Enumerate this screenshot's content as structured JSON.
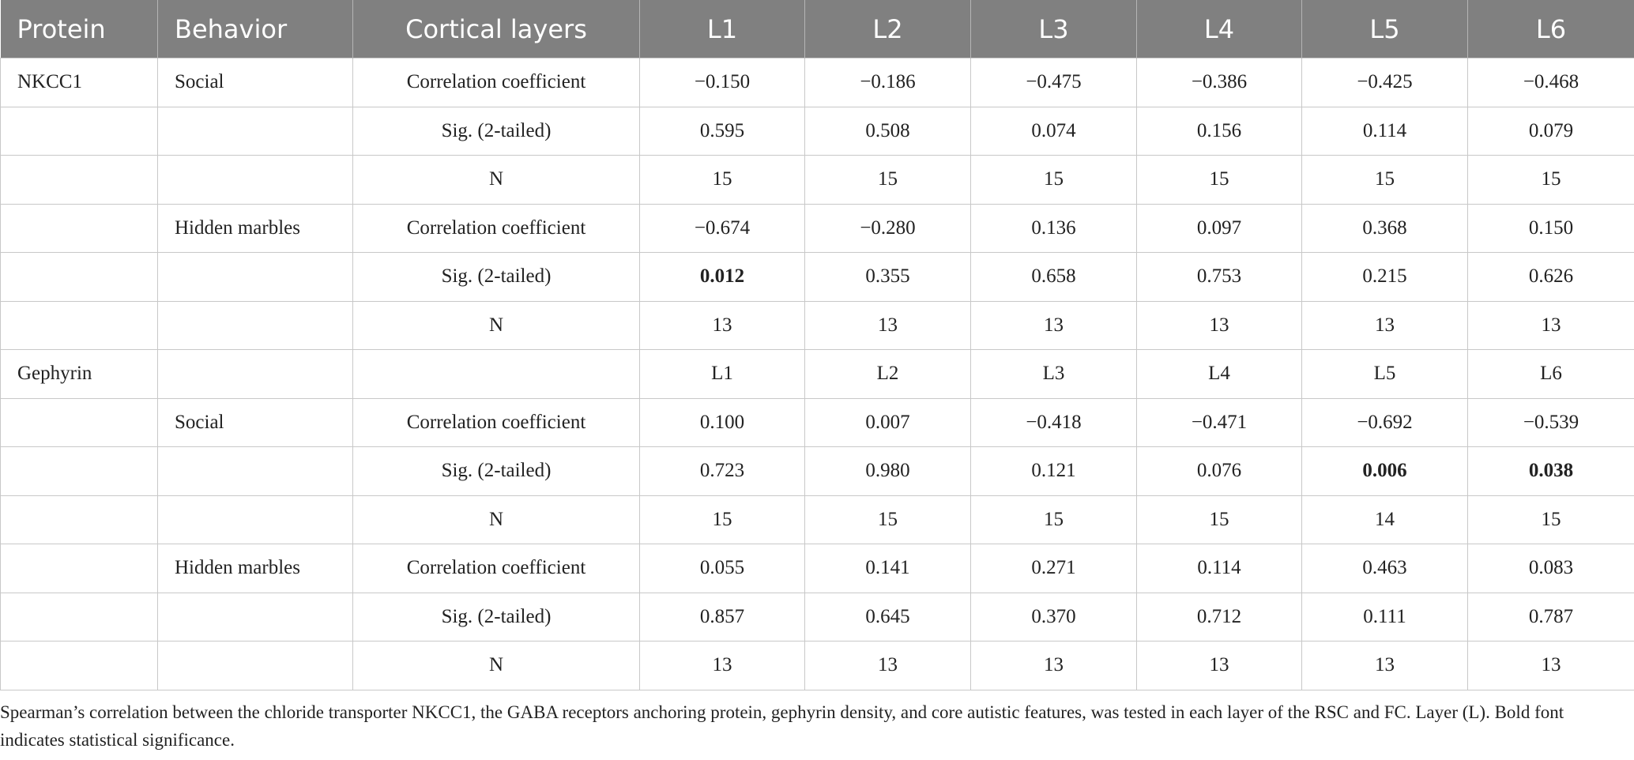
{
  "table": {
    "header": [
      "Protein",
      "Behavior",
      "Cortical layers",
      "L1",
      "L2",
      "L3",
      "L4",
      "L5",
      "L6"
    ],
    "rows": [
      [
        "NKCC1",
        "Social",
        "Correlation coefficient",
        "−0.150",
        "−0.186",
        "−0.475",
        "−0.386",
        "−0.425",
        "−0.468"
      ],
      [
        null,
        null,
        "Sig. (2-tailed)",
        "0.595",
        "0.508",
        "0.074",
        "0.156",
        "0.114",
        "0.079"
      ],
      [
        null,
        null,
        "N",
        "15",
        "15",
        "15",
        "15",
        "15",
        "15"
      ],
      [
        null,
        "Hidden marbles",
        "Correlation coefficient",
        "−0.674",
        "−0.280",
        "0.136",
        "0.097",
        "0.368",
        "0.150"
      ],
      [
        null,
        null,
        "Sig. (2-tailed)",
        {
          "text": "0.012",
          "bold": true
        },
        "0.355",
        "0.658",
        "0.753",
        "0.215",
        "0.626"
      ],
      [
        null,
        null,
        "N",
        "13",
        "13",
        "13",
        "13",
        "13",
        "13"
      ],
      [
        "Gephyrin",
        null,
        null,
        "L1",
        "L2",
        "L3",
        "L4",
        "L5",
        "L6"
      ],
      [
        null,
        "Social",
        "Correlation coefficient",
        "0.100",
        "0.007",
        "−0.418",
        "−0.471",
        "−0.692",
        "−0.539"
      ],
      [
        null,
        null,
        "Sig. (2-tailed)",
        "0.723",
        "0.980",
        "0.121",
        "0.076",
        {
          "text": "0.006",
          "bold": true
        },
        {
          "text": "0.038",
          "bold": true
        }
      ],
      [
        null,
        null,
        "N",
        "15",
        "15",
        "15",
        "15",
        "14",
        "15"
      ],
      [
        null,
        "Hidden marbles",
        "Correlation coefficient",
        "0.055",
        "0.141",
        "0.271",
        "0.114",
        "0.463",
        "0.083"
      ],
      [
        null,
        null,
        "Sig. (2-tailed)",
        "0.857",
        "0.645",
        "0.370",
        "0.712",
        "0.111",
        "0.787"
      ],
      [
        null,
        null,
        "N",
        "13",
        "13",
        "13",
        "13",
        "13",
        "13"
      ]
    ]
  },
  "caption": "Spearman’s correlation between the chloride transporter NKCC1, the GABA receptors anchoring protein, gephyrin density, and core autistic features, was tested in each layer of the RSC and FC. Layer (L). Bold font indicates statistical significance."
}
